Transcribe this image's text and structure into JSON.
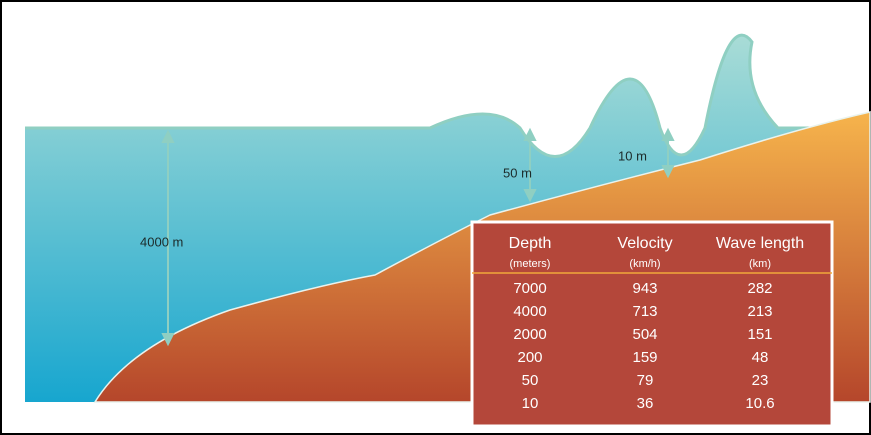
{
  "labels": {
    "deep": "4000 m",
    "shelf": "50 m",
    "shore": "10 m"
  },
  "table": {
    "headers": [
      "Depth",
      "Velocity",
      "Wave length"
    ],
    "units": [
      "(meters)",
      "(km/h)",
      "(km)"
    ],
    "rows": [
      [
        "7000",
        "943",
        "282"
      ],
      [
        "4000",
        "713",
        "213"
      ],
      [
        "2000",
        "504",
        "151"
      ],
      [
        "200",
        "159",
        "48"
      ],
      [
        "50",
        "79",
        "23"
      ],
      [
        "10",
        "36",
        "10.6"
      ]
    ]
  }
}
